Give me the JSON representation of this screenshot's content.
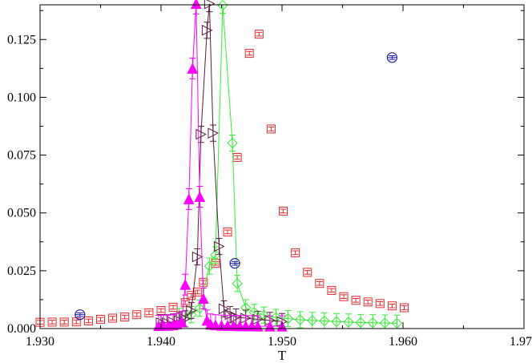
{
  "chart_data": {
    "type": "scatter",
    "title": "",
    "xlabel": "T",
    "ylabel": "",
    "xlim": [
      1.93,
      1.97
    ],
    "ylim": [
      0.0,
      0.14
    ],
    "grid": false,
    "legend": "none",
    "x_ticks": [
      "1.930",
      "1.940",
      "1.950",
      "1.960",
      "1.970"
    ],
    "y_ticks": [
      "0.000",
      "0.025",
      "0.050",
      "0.075",
      "0.100",
      "0.125"
    ],
    "series": [
      {
        "marker": "square",
        "color": "#e8262b",
        "line": false,
        "points": [
          [
            1.93,
            0.0027
          ],
          [
            1.931,
            0.0028
          ],
          [
            1.932,
            0.0028
          ],
          [
            1.933,
            0.0029
          ],
          [
            1.934,
            0.0033
          ],
          [
            1.935,
            0.004
          ],
          [
            1.936,
            0.0045
          ],
          [
            1.937,
            0.005
          ],
          [
            1.938,
            0.006
          ],
          [
            1.939,
            0.0068
          ],
          [
            1.94,
            0.0078
          ],
          [
            1.941,
            0.0092
          ],
          [
            1.942,
            0.0112
          ],
          [
            1.9425,
            0.0143
          ],
          [
            1.943,
            0.0158
          ],
          [
            1.9435,
            0.02
          ],
          [
            1.9445,
            0.0282
          ],
          [
            1.9455,
            0.0418
          ],
          [
            1.9463,
            0.074
          ],
          [
            1.9473,
            0.119
          ],
          [
            1.9481,
            0.1273
          ],
          [
            1.9491,
            0.0863
          ],
          [
            1.9501,
            0.0508
          ],
          [
            1.9511,
            0.0328
          ],
          [
            1.9521,
            0.0243
          ],
          [
            1.9531,
            0.0195
          ],
          [
            1.9541,
            0.0165
          ],
          [
            1.9551,
            0.0138
          ],
          [
            1.9561,
            0.0122
          ],
          [
            1.9571,
            0.0115
          ],
          [
            1.9581,
            0.0108
          ],
          [
            1.9591,
            0.0098
          ],
          [
            1.9601,
            0.009
          ]
        ]
      },
      {
        "marker": "diamond",
        "color": "#33ee33",
        "line": true,
        "error": 0.0035,
        "points": [
          [
            1.9415,
            0.0052
          ],
          [
            1.9425,
            0.006
          ],
          [
            1.9432,
            0.0088
          ],
          [
            1.944,
            0.027
          ],
          [
            1.9445,
            0.0318
          ],
          [
            1.9451,
            0.1398
          ],
          [
            1.9459,
            0.0802
          ],
          [
            1.9463,
            0.0195
          ],
          [
            1.947,
            0.009
          ],
          [
            1.9477,
            0.007
          ],
          [
            1.9485,
            0.0058
          ],
          [
            1.9495,
            0.0048
          ],
          [
            1.9505,
            0.0043
          ],
          [
            1.9515,
            0.0038
          ],
          [
            1.9525,
            0.0035
          ],
          [
            1.9535,
            0.0033
          ],
          [
            1.9545,
            0.003
          ],
          [
            1.9555,
            0.0028
          ],
          [
            1.9565,
            0.0026
          ],
          [
            1.9575,
            0.0025
          ],
          [
            1.9585,
            0.0024
          ],
          [
            1.9595,
            0.0023
          ]
        ]
      },
      {
        "marker": "triangle-right",
        "color": "#5c1a3f",
        "line": true,
        "error": 0.0035,
        "points": [
          [
            1.94,
            0.0025
          ],
          [
            1.9405,
            0.0025
          ],
          [
            1.941,
            0.0028
          ],
          [
            1.9415,
            0.0035
          ],
          [
            1.942,
            0.0042
          ],
          [
            1.9425,
            0.0078
          ],
          [
            1.943,
            0.031
          ],
          [
            1.9433,
            0.084
          ],
          [
            1.9438,
            0.129
          ],
          [
            1.944,
            0.1405
          ],
          [
            1.9443,
            0.0845
          ],
          [
            1.9448,
            0.0355
          ],
          [
            1.9452,
            0.0085
          ],
          [
            1.9457,
            0.006
          ],
          [
            1.9462,
            0.005
          ],
          [
            1.947,
            0.0045
          ],
          [
            1.948,
            0.004
          ],
          [
            1.949,
            0.0035
          ],
          [
            1.95,
            0.003
          ]
        ]
      },
      {
        "marker": "triangle-up",
        "color": "#ff00ff",
        "line": true,
        "filled": true,
        "error": 0.0045,
        "points": [
          [
            1.9398,
            0.0012
          ],
          [
            1.9402,
            0.0013
          ],
          [
            1.9406,
            0.0013
          ],
          [
            1.941,
            0.0015
          ],
          [
            1.9413,
            0.002
          ],
          [
            1.9417,
            0.003
          ],
          [
            1.942,
            0.019
          ],
          [
            1.9423,
            0.056
          ],
          [
            1.9426,
            0.1125
          ],
          [
            1.9429,
            0.1405
          ],
          [
            1.9432,
            0.057
          ],
          [
            1.9435,
            0.013
          ],
          [
            1.9438,
            0.0035
          ],
          [
            1.9441,
            0.0018
          ],
          [
            1.9445,
            0.0015
          ],
          [
            1.945,
            0.0013
          ],
          [
            1.9455,
            0.0012
          ],
          [
            1.946,
            0.0012
          ],
          [
            1.9465,
            0.0011
          ],
          [
            1.947,
            0.0011
          ],
          [
            1.9475,
            0.0011
          ],
          [
            1.948,
            0.001
          ],
          [
            1.949,
            0.001
          ],
          [
            1.95,
            0.001
          ]
        ]
      },
      {
        "marker": "circle",
        "color": "#1a1aaa",
        "line": false,
        "points": [
          [
            1.9333,
            0.006
          ],
          [
            1.9461,
            0.0282
          ],
          [
            1.9591,
            0.1172
          ]
        ]
      }
    ]
  }
}
